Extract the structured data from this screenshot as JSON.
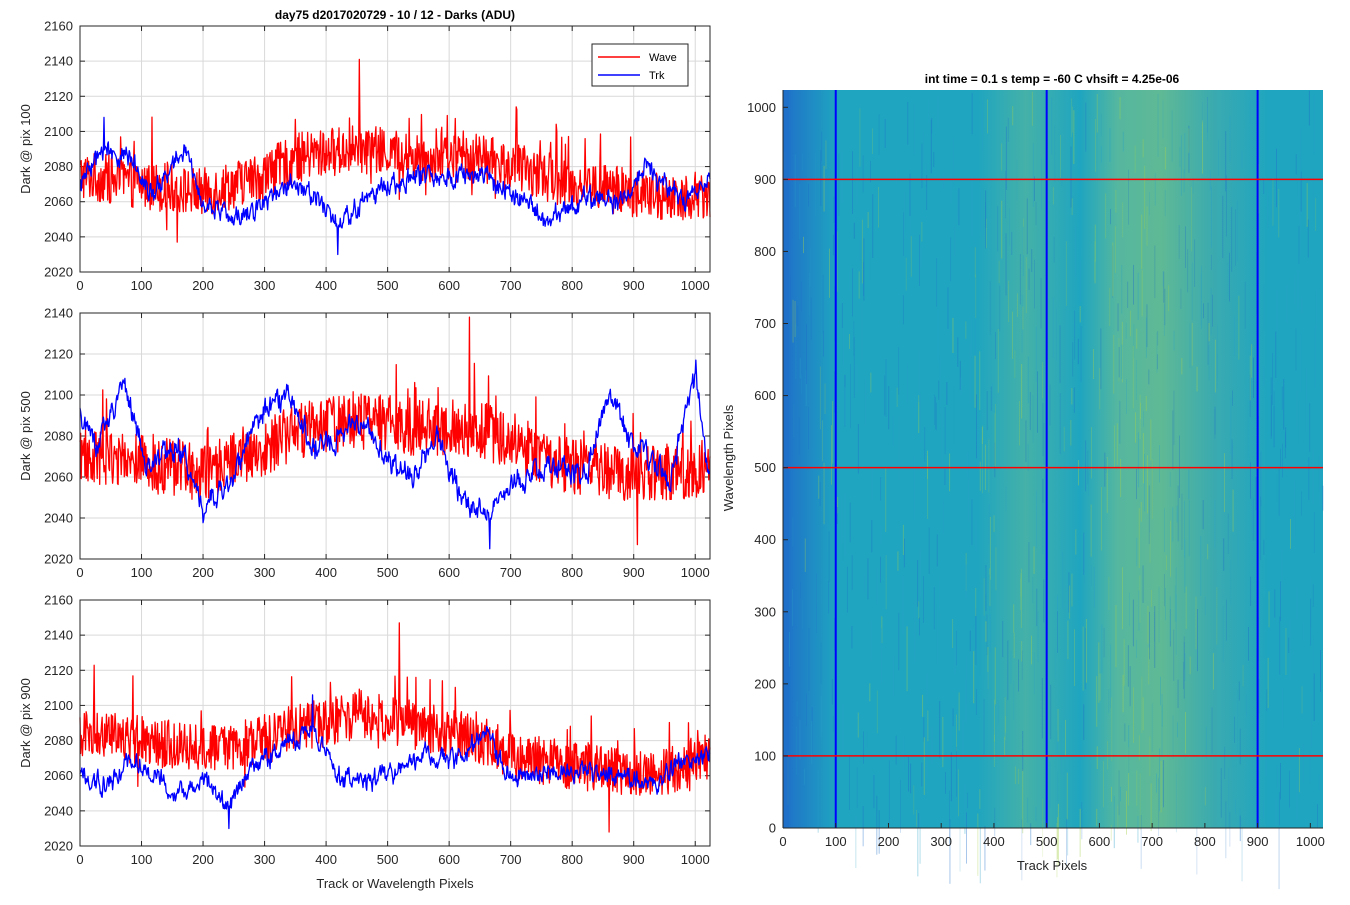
{
  "figure": {
    "suptitle": "day75 d2017020729 - 10 / 12 - Darks (ADU)",
    "shared_xlabel": "Track or Wavelength Pixels"
  },
  "colors": {
    "wave": "#ff0000",
    "trk": "#0000ff",
    "grid": "#d9d9d9",
    "axes": "#262626",
    "heatmap_low": "#1f6fc9",
    "heatmap_mid": "#1fa5c0",
    "heatmap_high": "#a6d24a"
  },
  "chart_data": [
    {
      "type": "line",
      "ylabel": "Dark @ pix 100",
      "xlim": [
        0,
        1024
      ],
      "ylim": [
        2020,
        2160
      ],
      "x_ticks": [
        "0",
        "100",
        "200",
        "300",
        "400",
        "500",
        "600",
        "700",
        "800",
        "900",
        "1000"
      ],
      "y_ticks": [
        "2020",
        "2040",
        "2060",
        "2080",
        "2100",
        "2120",
        "2140",
        "2160"
      ],
      "grid": true,
      "legend": {
        "placement": "top-right",
        "entries": [
          "Wave",
          "Trk"
        ]
      },
      "series": [
        {
          "name": "Wave",
          "color": "#ff0000",
          "anchors_x": [
            0,
            100,
            200,
            300,
            350,
            400,
            450,
            500,
            550,
            600,
            650,
            700,
            750,
            800,
            850,
            900,
            950,
            1024
          ],
          "anchors_y": [
            2075,
            2070,
            2065,
            2075,
            2085,
            2088,
            2090,
            2088,
            2085,
            2085,
            2085,
            2080,
            2075,
            2070,
            2068,
            2065,
            2062,
            2065
          ],
          "noise": 14,
          "extremes": {
            "max": 2141,
            "min": 2037
          }
        },
        {
          "name": "Trk",
          "color": "#0000ff",
          "anchors_x": [
            0,
            40,
            80,
            120,
            170,
            200,
            250,
            300,
            340,
            380,
            420,
            460,
            500,
            560,
            640,
            700,
            760,
            820,
            880,
            920,
            980,
            1024
          ],
          "anchors_y": [
            2070,
            2090,
            2085,
            2065,
            2090,
            2060,
            2050,
            2060,
            2072,
            2065,
            2045,
            2060,
            2070,
            2075,
            2075,
            2065,
            2050,
            2062,
            2060,
            2080,
            2060,
            2075
          ],
          "noise": 6,
          "extremes": {
            "max": 2108,
            "min": 2030
          }
        }
      ]
    },
    {
      "type": "line",
      "ylabel": "Dark @ pix 500",
      "xlim": [
        0,
        1024
      ],
      "ylim": [
        2020,
        2140
      ],
      "x_ticks": [
        "0",
        "100",
        "200",
        "300",
        "400",
        "500",
        "600",
        "700",
        "800",
        "900",
        "1000"
      ],
      "y_ticks": [
        "2020",
        "2040",
        "2060",
        "2080",
        "2100",
        "2120",
        "2140"
      ],
      "grid": true,
      "series": [
        {
          "name": "Wave",
          "color": "#ff0000",
          "anchors_x": [
            0,
            100,
            200,
            300,
            350,
            400,
            450,
            500,
            550,
            600,
            650,
            700,
            750,
            800,
            850,
            900,
            950,
            1024
          ],
          "anchors_y": [
            2070,
            2068,
            2062,
            2075,
            2082,
            2085,
            2088,
            2086,
            2084,
            2085,
            2083,
            2078,
            2070,
            2065,
            2063,
            2062,
            2062,
            2065
          ],
          "noise": 14,
          "extremes": {
            "max": 2138,
            "min": 2027
          }
        },
        {
          "name": "Trk",
          "color": "#0000ff",
          "anchors_x": [
            0,
            30,
            70,
            110,
            160,
            200,
            250,
            280,
            340,
            380,
            420,
            460,
            500,
            540,
            580,
            620,
            660,
            700,
            760,
            820,
            860,
            900,
            960,
            1000,
            1024
          ],
          "anchors_y": [
            2090,
            2075,
            2105,
            2065,
            2075,
            2045,
            2060,
            2085,
            2100,
            2075,
            2080,
            2085,
            2070,
            2060,
            2080,
            2050,
            2040,
            2055,
            2065,
            2060,
            2100,
            2075,
            2060,
            2110,
            2060
          ],
          "noise": 6,
          "extremes": {
            "max": 2117,
            "min": 2025
          }
        }
      ]
    },
    {
      "type": "line",
      "ylabel": "Dark @ pix 900",
      "xlabel": "Track or Wavelength Pixels",
      "xlim": [
        0,
        1024
      ],
      "ylim": [
        2020,
        2160
      ],
      "x_ticks": [
        "0",
        "100",
        "200",
        "300",
        "400",
        "500",
        "600",
        "700",
        "800",
        "900",
        "1000"
      ],
      "y_ticks": [
        "2020",
        "2040",
        "2060",
        "2080",
        "2100",
        "2120",
        "2140",
        "2160"
      ],
      "grid": true,
      "series": [
        {
          "name": "Wave",
          "color": "#ff0000",
          "anchors_x": [
            0,
            100,
            200,
            300,
            350,
            400,
            450,
            500,
            550,
            600,
            650,
            700,
            750,
            800,
            850,
            900,
            950,
            1024
          ],
          "anchors_y": [
            2085,
            2080,
            2075,
            2080,
            2088,
            2090,
            2095,
            2092,
            2088,
            2085,
            2080,
            2072,
            2068,
            2066,
            2064,
            2062,
            2062,
            2068
          ],
          "noise": 14,
          "extremes": {
            "max": 2147,
            "min": 2028
          }
        },
        {
          "name": "Trk",
          "color": "#0000ff",
          "anchors_x": [
            0,
            40,
            80,
            120,
            160,
            200,
            240,
            280,
            330,
            380,
            420,
            460,
            500,
            560,
            620,
            660,
            700,
            760,
            820,
            880,
            940,
            980,
            1024
          ],
          "anchors_y": [
            2060,
            2055,
            2068,
            2060,
            2050,
            2058,
            2040,
            2065,
            2075,
            2088,
            2060,
            2055,
            2060,
            2070,
            2070,
            2085,
            2058,
            2062,
            2062,
            2060,
            2055,
            2068,
            2072
          ],
          "noise": 6,
          "extremes": {
            "max": 2106,
            "min": 2030
          }
        }
      ]
    },
    {
      "type": "heatmap",
      "title": "int time = 0.1 s   temp = -60 C   vhsift = 4.25e-06",
      "xlabel": "Track Pixels",
      "ylabel": "Wavelength Pixels",
      "xlim": [
        0,
        1024
      ],
      "ylim": [
        0,
        1024
      ],
      "x_ticks": [
        "0",
        "100",
        "200",
        "300",
        "400",
        "500",
        "600",
        "700",
        "800",
        "900",
        "1000"
      ],
      "y_ticks": [
        "0",
        "100",
        "200",
        "300",
        "400",
        "500",
        "600",
        "700",
        "800",
        "900",
        "1000"
      ],
      "grid": false,
      "colormap": "parula",
      "bright_band_track_ranges": [
        [
          520,
          700
        ],
        [
          360,
          460
        ]
      ],
      "marker_lines": [
        {
          "orientation": "vertical",
          "value": 100,
          "color": "#0000ff"
        },
        {
          "orientation": "vertical",
          "value": 500,
          "color": "#0000ff"
        },
        {
          "orientation": "vertical",
          "value": 900,
          "color": "#0000ff"
        },
        {
          "orientation": "horizontal",
          "value": 100,
          "color": "#ff0000"
        },
        {
          "orientation": "horizontal",
          "value": 500,
          "color": "#ff0000"
        },
        {
          "orientation": "horizontal",
          "value": 900,
          "color": "#ff0000"
        }
      ]
    }
  ]
}
